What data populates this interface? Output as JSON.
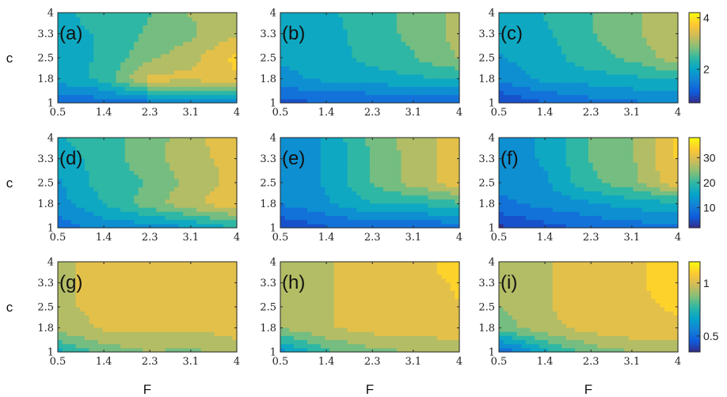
{
  "chart_data": {
    "type": "heatmap",
    "layout": "3x3 grid of filled contour maps, one colorbar per row",
    "x_ticks": [
      "0.5",
      "1.4",
      "2.3",
      "3.1",
      "4"
    ],
    "y_ticks": [
      "1",
      "1.8",
      "2.5",
      "3.3",
      "4"
    ],
    "xlabel": "F",
    "ylabel": "c",
    "colormap": "parula",
    "colors": [
      "#352a87",
      "#0f5cdd",
      "#1481d6",
      "#06a4ca",
      "#2eb7a4",
      "#87bf77",
      "#d1bb59",
      "#fec832",
      "#f9fb0e"
    ],
    "colorbars": [
      {
        "row": 1,
        "range": [
          0.7,
          4.2
        ],
        "ticks": [
          {
            "label": "2",
            "value": 2
          },
          {
            "label": "4",
            "value": 4
          }
        ]
      },
      {
        "row": 2,
        "range": [
          2,
          38
        ],
        "ticks": [
          {
            "label": "10",
            "value": 10
          },
          {
            "label": "20",
            "value": 20
          },
          {
            "label": "30",
            "value": 30
          }
        ]
      },
      {
        "row": 3,
        "range": [
          0.35,
          1.2
        ],
        "ticks": [
          {
            "label": "0.5",
            "value": 0.5
          },
          {
            "label": "1",
            "value": 1
          }
        ]
      }
    ],
    "grid_x": [
      0.5,
      1.4,
      2.3,
      3.1,
      4
    ],
    "grid_y": [
      1,
      1.8,
      2.5,
      3.3,
      4
    ],
    "panels": [
      {
        "label": "(a)",
        "row": 1,
        "col": 1,
        "z": [
          [
            1.4,
            1.3,
            1.4,
            1.6,
            1.7
          ],
          [
            2.0,
            2.4,
            3.5,
            3.4,
            3.6
          ],
          [
            2.2,
            2.3,
            2.9,
            3.2,
            3.8
          ],
          [
            2.2,
            2.3,
            2.7,
            2.9,
            3.3
          ],
          [
            2.2,
            2.4,
            2.6,
            3.0,
            3.1
          ]
        ]
      },
      {
        "label": "(b)",
        "row": 1,
        "col": 2,
        "z": [
          [
            1.1,
            1.2,
            1.2,
            1.3,
            1.3
          ],
          [
            1.8,
            2.0,
            2.1,
            2.2,
            2.3
          ],
          [
            2.0,
            2.1,
            2.4,
            2.6,
            3.0
          ],
          [
            2.0,
            2.1,
            2.5,
            2.7,
            3.1
          ],
          [
            2.1,
            2.2,
            2.5,
            2.7,
            3.1
          ]
        ]
      },
      {
        "label": "(c)",
        "row": 1,
        "col": 3,
        "z": [
          [
            0.8,
            1.2,
            1.4,
            1.5,
            1.6
          ],
          [
            1.7,
            2.0,
            2.1,
            2.2,
            2.3
          ],
          [
            1.9,
            2.1,
            2.5,
            2.7,
            3.2
          ],
          [
            2.0,
            2.2,
            2.6,
            2.9,
            3.3
          ],
          [
            2.1,
            2.3,
            2.6,
            2.9,
            3.3
          ]
        ]
      },
      {
        "label": "(d)",
        "row": 2,
        "col": 1,
        "z": [
          [
            9,
            12,
            12,
            14,
            18
          ],
          [
            13,
            18,
            24,
            28,
            32
          ],
          [
            14,
            20,
            22,
            27,
            30
          ],
          [
            16,
            20,
            24,
            28,
            30
          ],
          [
            18,
            20,
            24,
            27,
            33
          ]
        ]
      },
      {
        "label": "(e)",
        "row": 2,
        "col": 2,
        "z": [
          [
            4,
            7,
            8,
            8,
            8
          ],
          [
            11,
            14,
            18,
            18,
            21
          ],
          [
            12,
            15,
            22,
            27,
            31
          ],
          [
            12,
            15,
            22,
            27,
            31
          ],
          [
            12,
            15,
            23,
            27,
            31
          ]
        ]
      },
      {
        "label": "(f)",
        "row": 2,
        "col": 3,
        "z": [
          [
            3,
            6,
            8,
            9,
            10
          ],
          [
            10,
            12,
            14,
            16,
            17
          ],
          [
            12,
            14,
            21,
            24,
            32
          ],
          [
            13,
            15,
            22,
            25,
            33
          ],
          [
            13,
            15,
            22,
            25,
            33
          ]
        ]
      },
      {
        "label": "(g)",
        "row": 3,
        "col": 1,
        "z": [
          [
            0.7,
            0.85,
            0.9,
            0.88,
            0.95
          ],
          [
            0.95,
            1.0,
            1.0,
            1.0,
            1.02
          ],
          [
            0.98,
            1.0,
            1.02,
            1.03,
            1.04
          ],
          [
            0.98,
            1.0,
            1.02,
            1.03,
            1.04
          ],
          [
            0.98,
            1.0,
            1.02,
            1.03,
            1.05
          ]
        ]
      },
      {
        "label": "(h)",
        "row": 3,
        "col": 2,
        "z": [
          [
            0.6,
            0.8,
            0.88,
            0.9,
            0.92
          ],
          [
            0.9,
            0.98,
            1.02,
            1.03,
            1.05
          ],
          [
            0.92,
            0.98,
            1.03,
            1.05,
            1.07
          ],
          [
            0.92,
            0.98,
            1.03,
            1.05,
            1.08
          ],
          [
            0.92,
            0.98,
            1.02,
            1.05,
            1.1
          ]
        ]
      },
      {
        "label": "(i)",
        "row": 3,
        "col": 3,
        "z": [
          [
            0.45,
            0.7,
            0.85,
            0.9,
            0.93
          ],
          [
            0.85,
            0.96,
            1.02,
            1.05,
            1.06
          ],
          [
            0.9,
            0.98,
            1.04,
            1.06,
            1.08
          ],
          [
            0.9,
            0.98,
            1.04,
            1.06,
            1.1
          ],
          [
            0.9,
            0.98,
            1.03,
            1.05,
            1.12
          ]
        ]
      }
    ]
  }
}
